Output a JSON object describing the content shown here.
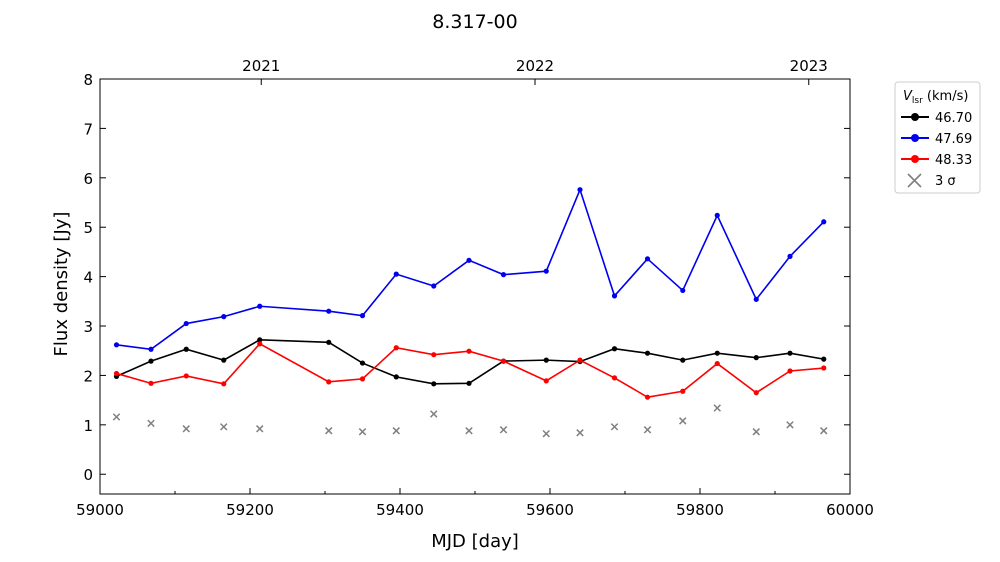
{
  "chart_data": {
    "type": "line",
    "title": "8.317-00",
    "xlabel": "MJD [day]",
    "ylabel": "Flux density [Jy]",
    "xlim": [
      59000,
      60000
    ],
    "ylim": [
      -0.4,
      8
    ],
    "xticks": [
      59000,
      59200,
      59400,
      59600,
      59800,
      60000
    ],
    "xtick_labels": [
      "59000",
      "59200",
      "59400",
      "59600",
      "59800",
      "60000"
    ],
    "yticks": [
      0,
      1,
      2,
      3,
      4,
      5,
      6,
      7,
      8
    ],
    "ytick_labels": [
      "0",
      "1",
      "2",
      "3",
      "4",
      "5",
      "6",
      "7",
      "8"
    ],
    "top_axis": {
      "ticks": [
        59215,
        59580,
        59945
      ],
      "labels": [
        "2021",
        "2022",
        "2023"
      ]
    },
    "grid": false,
    "legend": {
      "placement": "outside-right-top",
      "title_main": "V",
      "title_sub": "lsr",
      "title_unit": " (km/s)",
      "sigma_label": "3 σ"
    },
    "x": [
      59022,
      59068,
      59115,
      59165,
      59213,
      59305,
      59350,
      59395,
      59445,
      59492,
      59538,
      59595,
      59640,
      59686,
      59730,
      59777,
      59823,
      59875,
      59920,
      59965
    ],
    "series": [
      {
        "name": "46.70",
        "color": "#000000",
        "values": [
          1.98,
          2.29,
          2.53,
          2.31,
          2.72,
          2.67,
          2.25,
          1.97,
          1.83,
          1.84,
          2.29,
          2.31,
          2.28,
          2.54,
          2.45,
          2.31,
          2.45,
          2.36,
          2.45,
          2.33
        ]
      },
      {
        "name": "47.69",
        "color": "#0000ee",
        "values": [
          2.62,
          2.53,
          3.05,
          3.19,
          3.4,
          3.3,
          3.21,
          4.05,
          3.81,
          4.33,
          4.04,
          4.11,
          5.76,
          3.61,
          4.36,
          3.72,
          5.24,
          3.54,
          4.41,
          5.11
        ]
      },
      {
        "name": "48.33",
        "color": "#ff0000",
        "values": [
          2.04,
          1.84,
          1.99,
          1.83,
          2.64,
          1.87,
          1.93,
          2.56,
          2.42,
          2.49,
          2.29,
          1.89,
          2.31,
          1.95,
          1.56,
          1.68,
          2.24,
          1.65,
          2.09,
          2.15
        ]
      }
    ],
    "sigma": {
      "color": "#808080",
      "values": [
        1.16,
        1.03,
        0.92,
        0.96,
        0.92,
        0.88,
        0.86,
        0.88,
        1.22,
        0.88,
        0.9,
        0.82,
        0.84,
        0.96,
        0.9,
        1.08,
        1.34,
        0.86,
        1.0,
        0.88
      ]
    }
  }
}
